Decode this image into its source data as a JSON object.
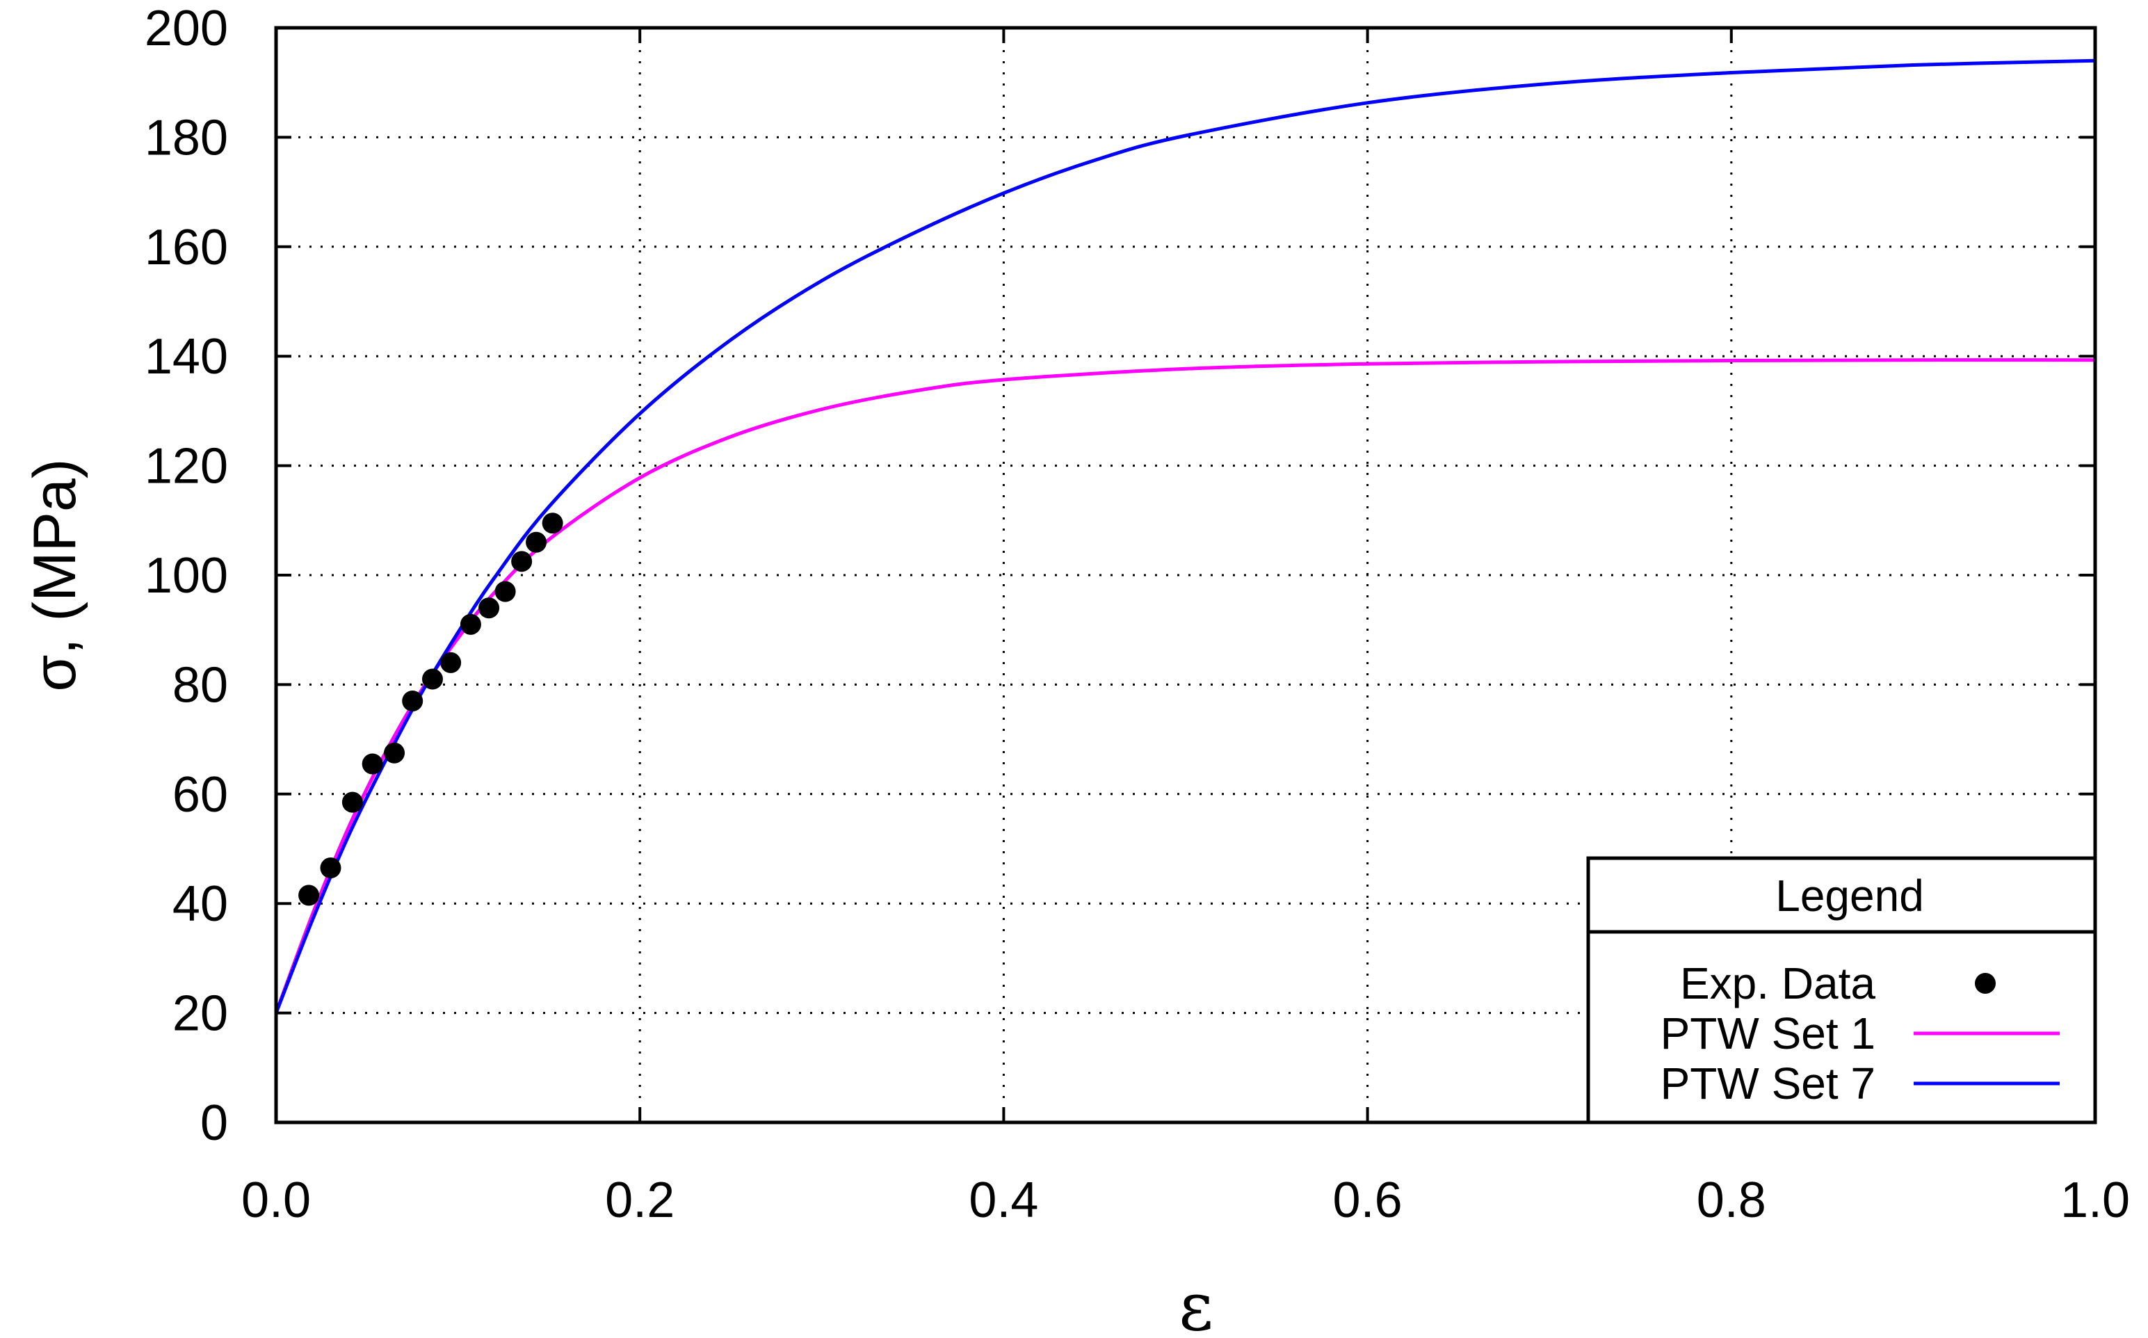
{
  "chart_data": {
    "type": "line",
    "xlabel": "ε",
    "ylabel": "σ, (MPa)",
    "xlim": [
      0,
      1.0
    ],
    "ylim": [
      0,
      200
    ],
    "x_ticks": [
      "0.0",
      "0.2",
      "0.4",
      "0.6",
      "0.8",
      "1.0"
    ],
    "y_ticks": [
      "0",
      "20",
      "40",
      "60",
      "80",
      "100",
      "120",
      "140",
      "160",
      "180",
      "200"
    ],
    "grid": true,
    "legend": {
      "title": "Legend",
      "placement": "bottom-right",
      "entries": [
        "Exp. Data",
        "PTW Set 1",
        "PTW Set 7"
      ]
    },
    "series": [
      {
        "name": "Exp. Data",
        "style": "markers",
        "color": "#000000",
        "x": [
          0.018,
          0.03,
          0.042,
          0.053,
          0.065,
          0.075,
          0.086,
          0.096,
          0.107,
          0.117,
          0.126,
          0.135,
          0.143,
          0.152
        ],
        "y": [
          41.5,
          46.5,
          58.5,
          65.5,
          67.5,
          77,
          81,
          84,
          91,
          94,
          97,
          102.5,
          106,
          109.5
        ]
      },
      {
        "name": "PTW Set 1",
        "style": "line",
        "color": "#ff00ff",
        "x": [
          0,
          0.02,
          0.04,
          0.06,
          0.08,
          0.1,
          0.12,
          0.15,
          0.2,
          0.25,
          0.3,
          0.35,
          0.4,
          0.5,
          0.6,
          0.7,
          0.8,
          0.9,
          1.0
        ],
        "y": [
          20,
          38,
          54,
          67.5,
          79,
          88.5,
          96.8,
          106.5,
          117.8,
          125.3,
          130.3,
          133.6,
          135.7,
          137.7,
          138.6,
          139,
          139.2,
          139.3,
          139.3
        ]
      },
      {
        "name": "PTW Set 7",
        "style": "line",
        "color": "#0000ff",
        "x": [
          0,
          0.02,
          0.04,
          0.06,
          0.08,
          0.1,
          0.12,
          0.15,
          0.2,
          0.25,
          0.3,
          0.35,
          0.4,
          0.45,
          0.5,
          0.6,
          0.7,
          0.8,
          0.9,
          1.0
        ],
        "y": [
          20,
          37,
          52.5,
          66,
          78.5,
          89.5,
          99.5,
          112.5,
          129.5,
          143,
          153.8,
          162.4,
          169.8,
          175.8,
          180.3,
          186.3,
          189.8,
          191.8,
          193.2,
          194
        ]
      }
    ]
  }
}
